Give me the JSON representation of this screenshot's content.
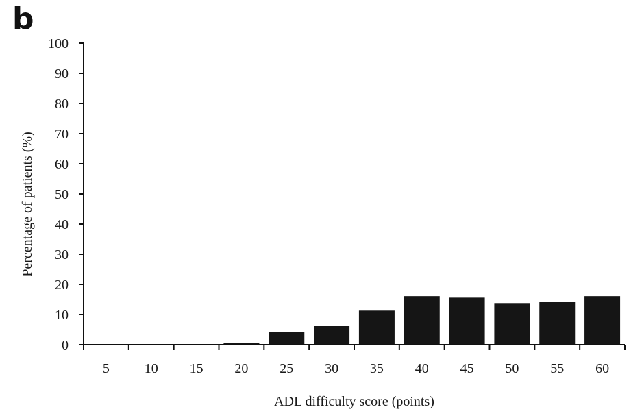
{
  "panel_label": "b",
  "chart_data": {
    "type": "bar",
    "title": "",
    "xlabel": "ADL difficulty score (points)",
    "ylabel": "Percentage of patients (%)",
    "categories": [
      "5",
      "10",
      "15",
      "20",
      "25",
      "30",
      "35",
      "40",
      "45",
      "50",
      "55",
      "60"
    ],
    "values": [
      0,
      0,
      0,
      0.6,
      4.3,
      6.2,
      11.3,
      16.1,
      15.6,
      13.8,
      14.2,
      16.1
    ],
    "ylim": [
      0,
      100
    ],
    "yticks": [
      0,
      10,
      20,
      30,
      40,
      50,
      60,
      70,
      80,
      90,
      100
    ],
    "grid": false,
    "bar_color": "#151515"
  }
}
